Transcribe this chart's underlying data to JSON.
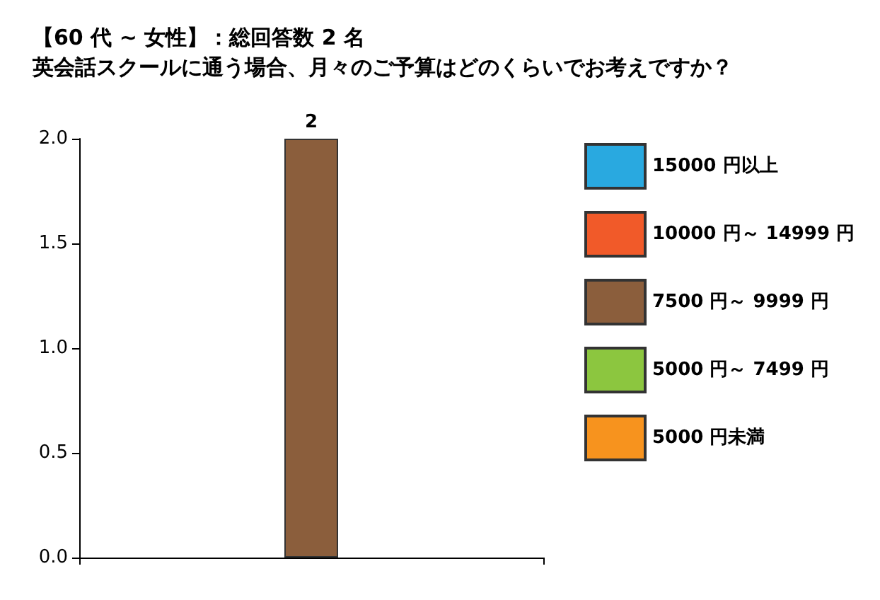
{
  "chart_data": {
    "type": "bar",
    "title": "【60 代 ~ 女性】：総回答数 2 名",
    "subtitle": "英会話スクールに通う場合、月々のご予算はどのくらいでお考えですか？",
    "categories": [
      null
    ],
    "series": [
      {
        "name": "15000 円以上",
        "color": "#29a9e0",
        "values": [
          null
        ]
      },
      {
        "name": "10000 円～ 14999 円",
        "color": "#f15a29",
        "values": [
          null
        ]
      },
      {
        "name": "7500 円～ 9999 円",
        "color": "#8b5e3c",
        "values": [
          2
        ],
        "value_labels": [
          "2"
        ]
      },
      {
        "name": "5000 円～ 7499 円",
        "color": "#8cc63f",
        "values": [
          null
        ]
      },
      {
        "name": "5000 円未満",
        "color": "#f7931e",
        "values": [
          null
        ]
      }
    ],
    "ylim": [
      0,
      2
    ],
    "yticks": [
      {
        "value": 0,
        "label": "0.0"
      },
      {
        "value": 0.5,
        "label": "0.5"
      },
      {
        "value": 1,
        "label": "1.0"
      },
      {
        "value": 1.5,
        "label": "1.5"
      },
      {
        "value": 2,
        "label": "2.0"
      }
    ],
    "grid": false,
    "legend": "right"
  }
}
